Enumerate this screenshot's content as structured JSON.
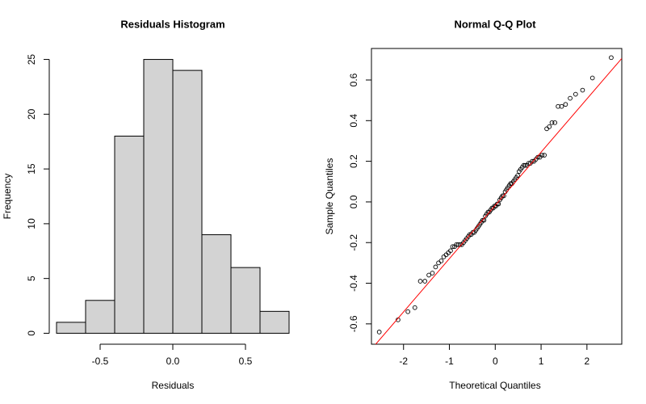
{
  "chart_data": [
    {
      "type": "histogram",
      "title": "Residuals Histogram",
      "x_label": "Residuals",
      "y_label": "Frequency",
      "bins": [
        -0.8,
        -0.6,
        -0.4,
        -0.2,
        0,
        0.2,
        0.4,
        0.6,
        0.8
      ],
      "values": [
        1,
        3,
        18,
        25,
        24,
        9,
        6,
        2
      ],
      "color": "#d3d3d3",
      "xlim": [
        -0.85,
        0.85
      ],
      "ylim": [
        -1,
        26
      ],
      "xticks": [
        -0.5,
        {
          "value": 0,
          "label": "0.0"
        },
        0.5
      ],
      "yticks": [
        0,
        5,
        10,
        15,
        20,
        25
      ]
    },
    {
      "type": "scatter",
      "title": "Normal Q-Q Plot",
      "x_label": "Theoretical Quantiles",
      "y_label": "Sample Quantiles",
      "x": [
        -2.53,
        -2.12,
        -1.905,
        -1.753,
        -1.634,
        -1.534,
        -1.448,
        -1.371,
        -1.301,
        -1.237,
        -1.178,
        -1.123,
        -1.071,
        -1.022,
        -0.975,
        -0.93,
        -0.887,
        -0.846,
        -0.806,
        -0.767,
        -0.729,
        -0.692,
        -0.657,
        -0.622,
        -0.587,
        -0.554,
        -0.521,
        -0.489,
        -0.457,
        -0.426,
        -0.395,
        -0.364,
        -0.334,
        -0.304,
        -0.275,
        -0.245,
        -0.216,
        -0.187,
        -0.157,
        -0.129,
        -0.1,
        -0.071,
        -0.043,
        -0.014,
        0.014,
        0.043,
        0.071,
        0.1,
        0.129,
        0.157,
        0.187,
        0.216,
        0.245,
        0.275,
        0.304,
        0.334,
        0.364,
        0.395,
        0.426,
        0.457,
        0.489,
        0.521,
        0.554,
        0.587,
        0.622,
        0.657,
        0.692,
        0.729,
        0.767,
        0.806,
        0.846,
        0.887,
        0.93,
        0.975,
        1.022,
        1.071,
        1.123,
        1.178,
        1.237,
        1.301,
        1.371,
        1.448,
        1.534,
        1.634,
        1.753,
        1.905,
        2.12,
        2.53
      ],
      "y": [
        -0.64,
        -0.58,
        -0.54,
        -0.52,
        -0.39,
        -0.39,
        -0.36,
        -0.35,
        -0.32,
        -0.3,
        -0.29,
        -0.27,
        -0.26,
        -0.25,
        -0.24,
        -0.22,
        -0.22,
        -0.21,
        -0.21,
        -0.21,
        -0.21,
        -0.2,
        -0.19,
        -0.18,
        -0.17,
        -0.16,
        -0.16,
        -0.15,
        -0.15,
        -0.14,
        -0.13,
        -0.12,
        -0.11,
        -0.1,
        -0.09,
        -0.09,
        -0.07,
        -0.06,
        -0.05,
        -0.05,
        -0.04,
        -0.03,
        -0.03,
        -0.02,
        -0.02,
        -0.01,
        -0.01,
        0.01,
        0.02,
        0.03,
        0.03,
        0.05,
        0.06,
        0.07,
        0.08,
        0.09,
        0.09,
        0.1,
        0.11,
        0.12,
        0.13,
        0.15,
        0.16,
        0.17,
        0.18,
        0.18,
        0.18,
        0.19,
        0.19,
        0.2,
        0.2,
        0.21,
        0.22,
        0.22,
        0.23,
        0.23,
        0.36,
        0.37,
        0.39,
        0.39,
        0.47,
        0.47,
        0.48,
        0.51,
        0.53,
        0.55,
        0.61,
        0.71
      ],
      "color": "#000000",
      "line": {
        "intercept": -0.017,
        "slope": 0.262,
        "color": "#ff0000"
      },
      "xlim": [
        -2.7,
        2.76
      ],
      "ylim": [
        -0.7,
        0.755
      ],
      "xticks": [
        -2,
        -1,
        0,
        1,
        2
      ],
      "yticks": [
        -0.6,
        -0.4,
        -0.2,
        {
          "value": 0,
          "label": "0.0"
        },
        0.2,
        0.4,
        0.6
      ]
    }
  ]
}
